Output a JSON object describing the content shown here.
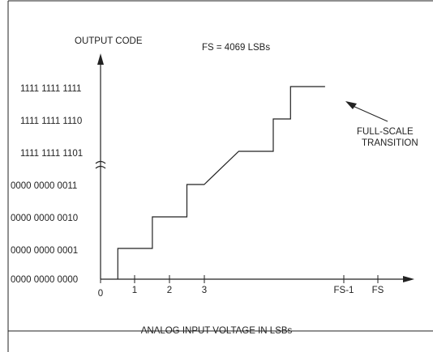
{
  "chart_data": {
    "type": "line",
    "title": "",
    "xlabel": "ANALOG INPUT VOLTAGE IN LSBs",
    "ylabel": "OUTPUT CODE",
    "annotations": {
      "fs_note": "FS = 4069 LSBs",
      "full_scale_line1": "FULL-SCALE",
      "full_scale_line2": "TRANSITION"
    },
    "x_ticks": [
      "0",
      "1",
      "2",
      "3",
      "FS-1",
      "FS"
    ],
    "y_ticks": [
      "0000 0000 0000",
      "0000 0000 0001",
      "0000 0000 0010",
      "0000 0000 0011",
      "1111 1111 1101",
      "1111 1111 1110",
      "1111 1111 1111"
    ],
    "series": [
      {
        "points": [
          {
            "x": 0.5,
            "y": 0
          },
          {
            "x": 0.5,
            "y": 1
          },
          {
            "x": 1.5,
            "y": 1
          },
          {
            "x": 1.5,
            "y": 2
          },
          {
            "x": 2.5,
            "y": 2
          },
          {
            "x": 2.5,
            "y": 3
          },
          {
            "x": 3,
            "y": 3
          },
          {
            "x": 4,
            "y": 4
          },
          {
            "x": 5,
            "y": 4
          },
          {
            "x": 5,
            "y": 5
          },
          {
            "x": 5.5,
            "y": 5
          },
          {
            "x": 5.5,
            "y": 6
          },
          {
            "x": 6.5,
            "y": 6
          }
        ]
      }
    ]
  }
}
